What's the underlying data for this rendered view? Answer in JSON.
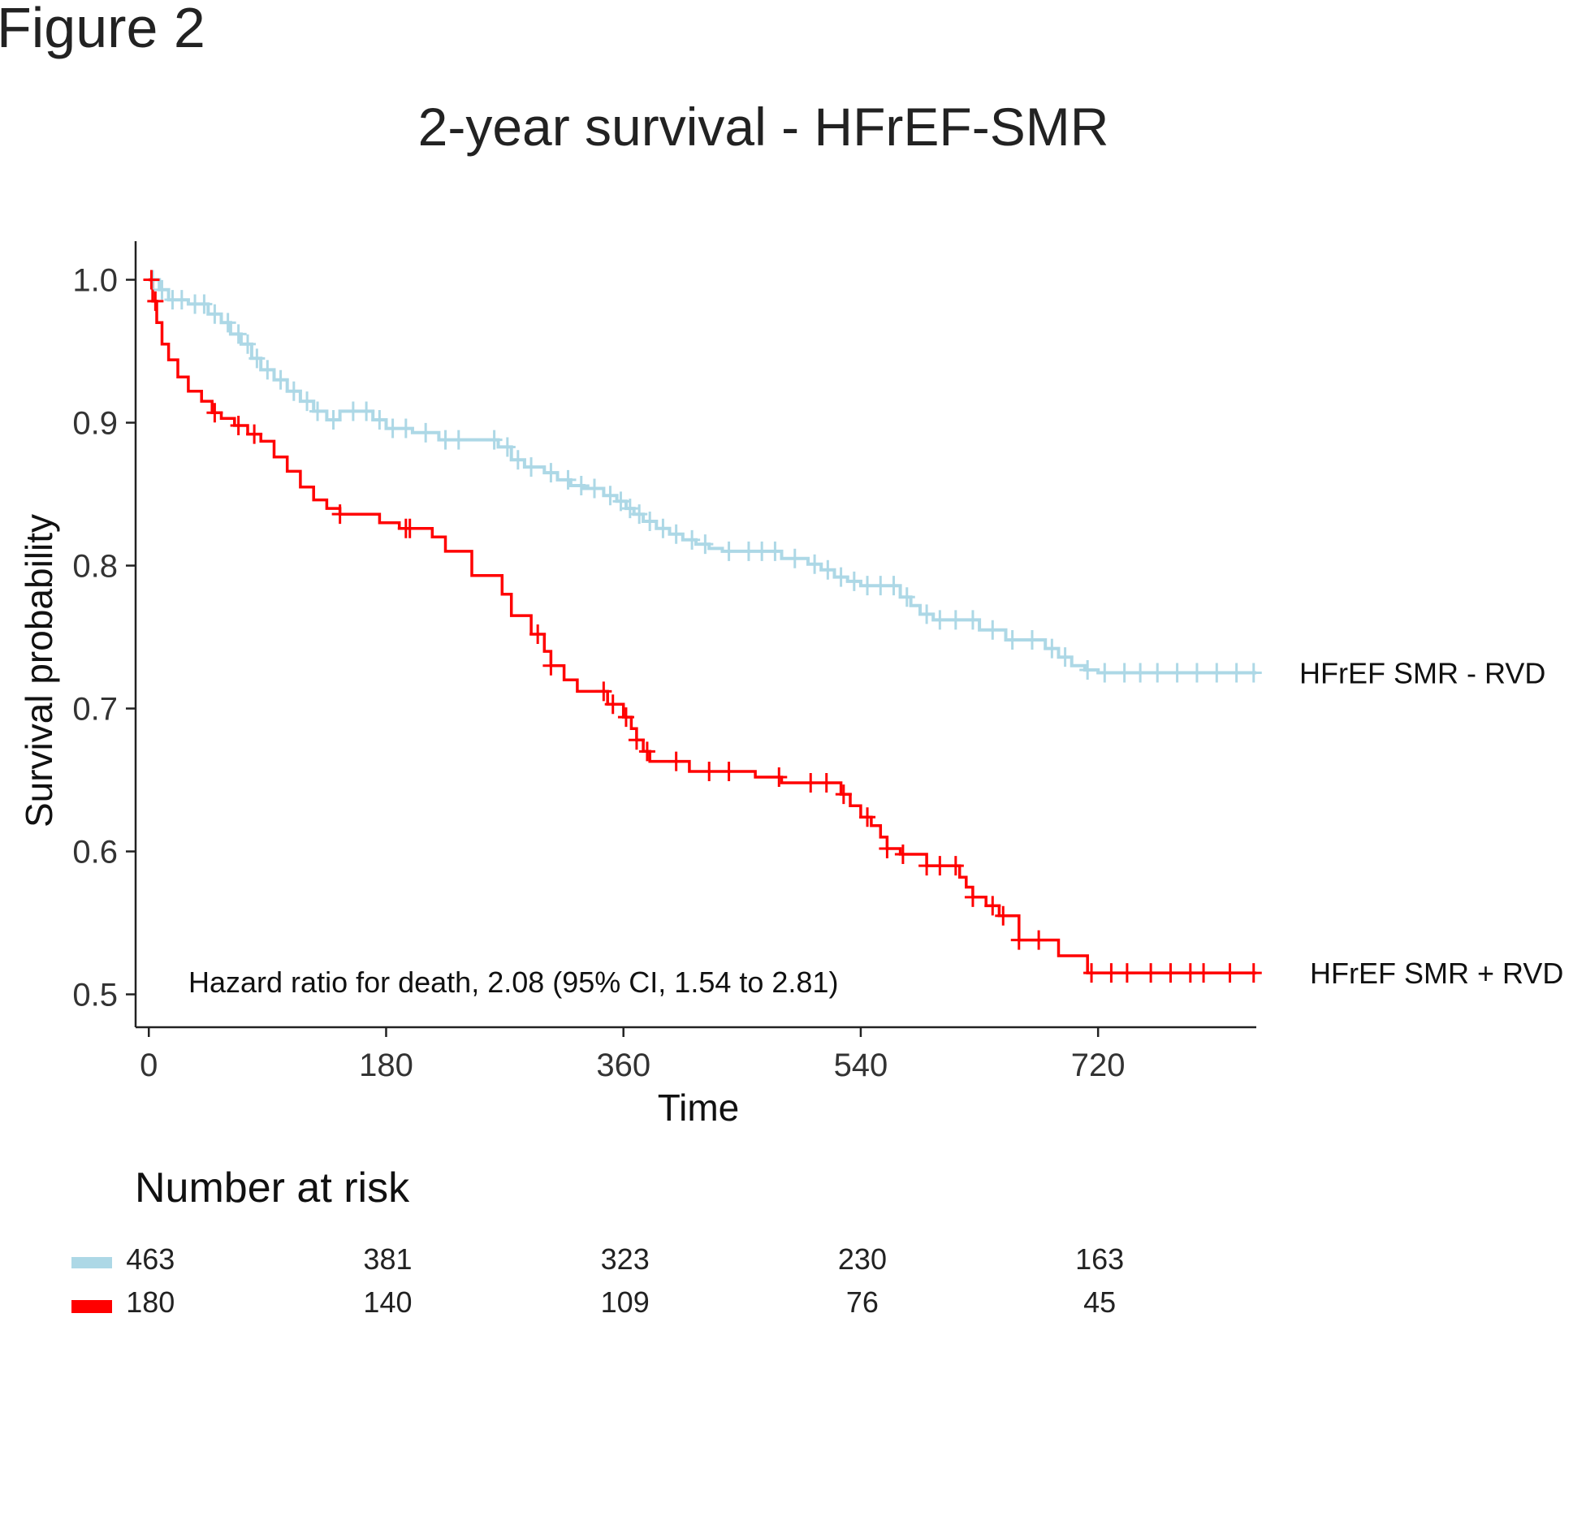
{
  "figure_label": "Figure 2",
  "chart_data": {
    "type": "line",
    "title": "2-year survival - HFrEF-SMR",
    "xlabel": "Time",
    "ylabel": "Survival probability",
    "xlim": [
      -10,
      840
    ],
    "ylim": [
      0.477,
      1.027
    ],
    "xticks": [
      0,
      180,
      360,
      540,
      720
    ],
    "yticks": [
      0.5,
      0.6,
      0.7,
      0.8,
      0.9,
      1.0
    ],
    "ytick_labels": [
      "0.5",
      "0.6",
      "0.7",
      "0.8",
      "0.9",
      "1.0"
    ],
    "grid": false,
    "annotation": "Hazard ratio for death, 2.08 (95% CI, 1.54 to 2.81)",
    "series": [
      {
        "name": "HFrEF SMR - RVD",
        "color": "#add8e6",
        "x": [
          0,
          8,
          15,
          30,
          45,
          55,
          62,
          70,
          78,
          85,
          95,
          105,
          115,
          125,
          135,
          145,
          160,
          170,
          180,
          200,
          220,
          240,
          255,
          265,
          275,
          285,
          300,
          310,
          320,
          330,
          345,
          355,
          362,
          368,
          375,
          385,
          395,
          405,
          415,
          425,
          435,
          450,
          480,
          500,
          510,
          520,
          530,
          540,
          560,
          570,
          578,
          585,
          595,
          605,
          620,
          630,
          650,
          665,
          680,
          690,
          700,
          710,
          720,
          840
        ],
        "y": [
          1.0,
          0.993,
          0.986,
          0.983,
          0.976,
          0.97,
          0.962,
          0.955,
          0.945,
          0.937,
          0.93,
          0.922,
          0.915,
          0.908,
          0.902,
          0.908,
          0.908,
          0.902,
          0.896,
          0.893,
          0.888,
          0.888,
          0.888,
          0.883,
          0.874,
          0.869,
          0.865,
          0.86,
          0.856,
          0.854,
          0.849,
          0.845,
          0.84,
          0.836,
          0.831,
          0.826,
          0.822,
          0.818,
          0.815,
          0.812,
          0.81,
          0.81,
          0.805,
          0.801,
          0.797,
          0.792,
          0.789,
          0.786,
          0.786,
          0.778,
          0.772,
          0.766,
          0.762,
          0.762,
          0.762,
          0.755,
          0.748,
          0.748,
          0.742,
          0.736,
          0.73,
          0.727,
          0.725,
          0.725
        ]
      },
      {
        "name": "HFrEF SMR + RVD",
        "color": "#ff0000",
        "x": [
          0,
          3,
          6,
          10,
          15,
          22,
          30,
          40,
          48,
          55,
          65,
          75,
          85,
          95,
          105,
          115,
          125,
          135,
          145,
          160,
          175,
          190,
          200,
          215,
          225,
          235,
          245,
          260,
          268,
          275,
          290,
          300,
          305,
          315,
          325,
          335,
          348,
          360,
          366,
          370,
          375,
          380,
          395,
          410,
          430,
          440,
          460,
          480,
          500,
          520,
          525,
          532,
          540,
          548,
          555,
          560,
          570,
          580,
          590,
          600,
          615,
          620,
          625,
          635,
          645,
          660,
          672,
          690,
          700,
          712,
          840
        ],
        "y": [
          1.0,
          0.985,
          0.97,
          0.955,
          0.944,
          0.932,
          0.922,
          0.915,
          0.907,
          0.903,
          0.898,
          0.892,
          0.887,
          0.876,
          0.866,
          0.855,
          0.846,
          0.84,
          0.836,
          0.836,
          0.83,
          0.826,
          0.826,
          0.82,
          0.81,
          0.81,
          0.793,
          0.793,
          0.78,
          0.765,
          0.752,
          0.74,
          0.73,
          0.72,
          0.712,
          0.712,
          0.703,
          0.694,
          0.686,
          0.678,
          0.67,
          0.663,
          0.663,
          0.656,
          0.656,
          0.656,
          0.652,
          0.648,
          0.648,
          0.648,
          0.64,
          0.632,
          0.624,
          0.618,
          0.61,
          0.602,
          0.598,
          0.598,
          0.59,
          0.59,
          0.582,
          0.575,
          0.568,
          0.562,
          0.555,
          0.538,
          0.538,
          0.527,
          0.527,
          0.515,
          0.515
        ]
      }
    ],
    "censor_marks": [
      [
        3,
        10,
        18,
        25,
        35,
        42,
        50,
        60,
        68,
        75,
        82,
        90,
        100,
        110,
        120,
        128,
        140,
        155,
        165,
        175,
        185,
        195,
        210,
        225,
        235,
        262,
        272,
        280,
        290,
        305,
        318,
        328,
        338,
        350,
        358,
        365,
        372,
        380,
        390,
        400,
        412,
        422,
        440,
        455,
        465,
        475,
        490,
        505,
        515,
        525,
        535,
        545,
        555,
        565,
        575,
        590,
        600,
        612,
        625,
        640,
        655,
        670,
        685,
        695,
        712,
        725,
        740,
        752,
        765,
        780,
        795,
        810,
        825,
        838
      ],
      [
        2,
        5,
        50,
        68,
        80,
        145,
        195,
        198,
        295,
        305,
        345,
        352,
        362,
        370,
        378,
        400,
        425,
        440,
        478,
        502,
        514,
        527,
        545,
        560,
        572,
        590,
        600,
        612,
        625,
        640,
        648,
        660,
        675,
        715,
        730,
        742,
        760,
        775,
        790,
        800,
        820,
        838
      ]
    ],
    "risk_table": {
      "title": "Number at risk",
      "times": [
        0,
        180,
        360,
        540,
        720
      ],
      "rows": [
        {
          "color": "#add8e6",
          "counts": [
            "463",
            "381",
            "323",
            "230",
            "163"
          ]
        },
        {
          "color": "#ff0000",
          "counts": [
            "180",
            "140",
            "109",
            "76",
            "45"
          ]
        }
      ]
    }
  }
}
